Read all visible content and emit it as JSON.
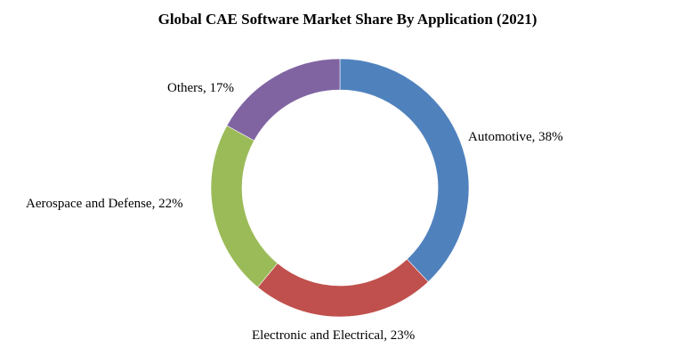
{
  "chart_data": {
    "type": "pie",
    "variant": "donut",
    "title": "Global CAE Software Market Share By Application (2021)",
    "categories": [
      "Automotive",
      "Electronic and Electrical",
      "Aerospace and Defense",
      "Others"
    ],
    "values": [
      38,
      23,
      22,
      17
    ],
    "unit": "%",
    "colors": [
      "#4f81bd",
      "#c0504d",
      "#9bbb59",
      "#8064a2"
    ],
    "labels": [
      "Automotive, 38%",
      "Electronic and Electrical, 23%",
      "Aerospace and Defense, 22%",
      "Others, 17%"
    ],
    "start_angle_deg": 0,
    "direction": "clockwise",
    "legend": "none",
    "data_labels": "outside"
  }
}
